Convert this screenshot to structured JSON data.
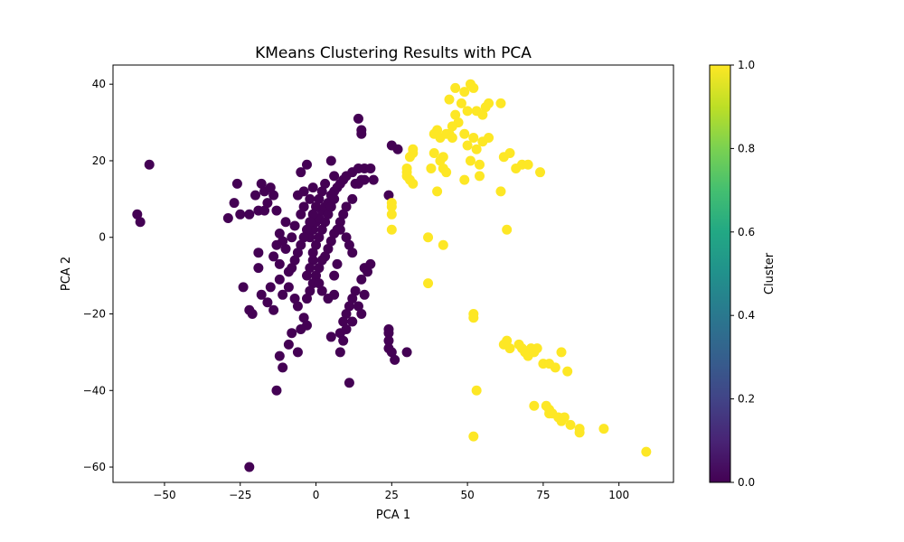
{
  "chart_data": {
    "type": "scatter",
    "title": "KMeans Clustering Results with PCA",
    "xlabel": "PCA 1",
    "ylabel": "PCA 2",
    "xlim": [
      -67,
      118
    ],
    "ylim": [
      -64,
      45
    ],
    "xticks": [
      -50,
      -25,
      0,
      25,
      50,
      75,
      100
    ],
    "xtick_labels": [
      "−50",
      "−25",
      "0",
      "25",
      "50",
      "75",
      "100"
    ],
    "yticks": [
      -60,
      -40,
      -20,
      0,
      20,
      40
    ],
    "ytick_labels": [
      "−60",
      "−40",
      "−20",
      "0",
      "20",
      "40"
    ],
    "grid": false,
    "colorbar": {
      "label": "Cluster",
      "range": [
        0,
        1
      ],
      "ticks": [
        0.0,
        0.2,
        0.4,
        0.6,
        0.8,
        1.0
      ],
      "tick_labels": [
        "0.0",
        "0.2",
        "0.4",
        "0.6",
        "0.8",
        "1.0"
      ],
      "colormap": "viridis"
    },
    "series": [
      {
        "cluster": 0,
        "color": "#440154",
        "points": [
          [
            -55,
            19
          ],
          [
            -59,
            6
          ],
          [
            -58,
            4
          ],
          [
            -26,
            14
          ],
          [
            -27,
            9
          ],
          [
            -29,
            5
          ],
          [
            -25,
            6
          ],
          [
            -22,
            6
          ],
          [
            -20,
            11
          ],
          [
            -18,
            14
          ],
          [
            -17,
            12
          ],
          [
            -15,
            13
          ],
          [
            -19,
            7
          ],
          [
            -17,
            7
          ],
          [
            -16,
            9
          ],
          [
            -14,
            11
          ],
          [
            -13,
            7
          ],
          [
            -19,
            -8
          ],
          [
            -21,
            -20
          ],
          [
            -22,
            -19
          ],
          [
            -24,
            -13
          ],
          [
            -19,
            -4
          ],
          [
            -14,
            -5
          ],
          [
            -12,
            -7
          ],
          [
            -10,
            -3
          ],
          [
            -8,
            0
          ],
          [
            -7,
            3
          ],
          [
            -5,
            6
          ],
          [
            -4,
            8
          ],
          [
            -2,
            10
          ],
          [
            -1,
            13
          ],
          [
            -5,
            17
          ],
          [
            -3,
            19
          ],
          [
            -6,
            11
          ],
          [
            -4,
            12
          ],
          [
            -11,
            -1
          ],
          [
            -9,
            -9
          ],
          [
            -12,
            -11
          ],
          [
            -15,
            -13
          ],
          [
            -18,
            -15
          ],
          [
            -16,
            -17
          ],
          [
            -14,
            -19
          ],
          [
            -11,
            -15
          ],
          [
            -9,
            -13
          ],
          [
            -7,
            -16
          ],
          [
            -6,
            -18
          ],
          [
            -4,
            -21
          ],
          [
            -3,
            -23
          ],
          [
            -5,
            -24
          ],
          [
            -8,
            -25
          ],
          [
            -9,
            -28
          ],
          [
            -12,
            -31
          ],
          [
            -11,
            -34
          ],
          [
            -13,
            -40
          ],
          [
            -22,
            -60
          ],
          [
            -2,
            0
          ],
          [
            -1,
            2
          ],
          [
            0,
            4
          ],
          [
            1,
            5
          ],
          [
            2,
            7
          ],
          [
            3,
            8
          ],
          [
            4,
            9
          ],
          [
            5,
            11
          ],
          [
            6,
            12
          ],
          [
            7,
            13
          ],
          [
            8,
            14
          ],
          [
            9,
            15
          ],
          [
            10,
            16
          ],
          [
            12,
            17
          ],
          [
            14,
            18
          ],
          [
            16,
            18
          ],
          [
            18,
            18
          ],
          [
            13,
            14
          ],
          [
            15,
            15
          ],
          [
            12,
            10
          ],
          [
            10,
            8
          ],
          [
            9,
            6
          ],
          [
            8,
            4
          ],
          [
            7,
            2
          ],
          [
            6,
            1
          ],
          [
            5,
            -1
          ],
          [
            4,
            -3
          ],
          [
            3,
            -5
          ],
          [
            2,
            -6
          ],
          [
            1,
            -8
          ],
          [
            0,
            -10
          ],
          [
            -1,
            -12
          ],
          [
            -2,
            -14
          ],
          [
            -3,
            -16
          ],
          [
            -1,
            -4
          ],
          [
            0,
            -2
          ],
          [
            1,
            0
          ],
          [
            2,
            2
          ],
          [
            3,
            4
          ],
          [
            4,
            6
          ],
          [
            5,
            8
          ],
          [
            6,
            10
          ],
          [
            0,
            8
          ],
          [
            1,
            10
          ],
          [
            -1,
            6
          ],
          [
            -2,
            4
          ],
          [
            -3,
            2
          ],
          [
            -4,
            0
          ],
          [
            -5,
            -2
          ],
          [
            -6,
            -4
          ],
          [
            -7,
            -6
          ],
          [
            -8,
            -8
          ],
          [
            5,
            20
          ],
          [
            6,
            16
          ],
          [
            3,
            14
          ],
          [
            2,
            12
          ],
          [
            8,
            2
          ],
          [
            10,
            0
          ],
          [
            11,
            -2
          ],
          [
            12,
            -4
          ],
          [
            7,
            -7
          ],
          [
            6,
            -10
          ],
          [
            16,
            -8
          ],
          [
            17,
            -9
          ],
          [
            18,
            -7
          ],
          [
            15,
            -11
          ],
          [
            13,
            -14
          ],
          [
            12,
            -16
          ],
          [
            11,
            -18
          ],
          [
            10,
            -20
          ],
          [
            9,
            -22
          ],
          [
            8,
            -25
          ],
          [
            9,
            -27
          ],
          [
            8,
            -30
          ],
          [
            11,
            -38
          ],
          [
            10,
            -24
          ],
          [
            12,
            -22
          ],
          [
            14,
            -18
          ],
          [
            16,
            -15
          ],
          [
            15,
            -20
          ],
          [
            5,
            -26
          ],
          [
            -6,
            -30
          ],
          [
            24,
            -24
          ],
          [
            24,
            -25
          ],
          [
            24,
            -27
          ],
          [
            24,
            -29
          ],
          [
            25,
            -30
          ],
          [
            26,
            -32
          ],
          [
            30,
            -30
          ],
          [
            24,
            11
          ],
          [
            25,
            24
          ],
          [
            27,
            23
          ],
          [
            14,
            31
          ],
          [
            15,
            28
          ],
          [
            15,
            27
          ],
          [
            16,
            15
          ],
          [
            14,
            14
          ],
          [
            19,
            15
          ],
          [
            -1,
            -6
          ],
          [
            -2,
            -8
          ],
          [
            -3,
            -10
          ],
          [
            1,
            -12
          ],
          [
            2,
            -14
          ],
          [
            4,
            -16
          ],
          [
            6,
            -15
          ],
          [
            -10,
            4
          ],
          [
            -12,
            1
          ],
          [
            -13,
            -2
          ]
        ]
      },
      {
        "cluster": 1,
        "color": "#fde725",
        "points": [
          [
            46,
            39
          ],
          [
            51,
            40
          ],
          [
            52,
            39
          ],
          [
            49,
            38
          ],
          [
            44,
            36
          ],
          [
            48,
            35
          ],
          [
            50,
            33
          ],
          [
            53,
            33
          ],
          [
            56,
            34
          ],
          [
            57,
            35
          ],
          [
            61,
            35
          ],
          [
            55,
            32
          ],
          [
            46,
            32
          ],
          [
            47,
            30
          ],
          [
            45,
            29
          ],
          [
            44,
            27
          ],
          [
            40,
            28
          ],
          [
            39,
            27
          ],
          [
            41,
            26
          ],
          [
            43,
            27
          ],
          [
            49,
            27
          ],
          [
            52,
            26
          ],
          [
            55,
            25
          ],
          [
            57,
            26
          ],
          [
            50,
            24
          ],
          [
            53,
            23
          ],
          [
            45,
            26
          ],
          [
            32,
            23
          ],
          [
            32,
            22
          ],
          [
            39,
            22
          ],
          [
            42,
            21
          ],
          [
            41,
            20
          ],
          [
            38,
            18
          ],
          [
            42,
            18
          ],
          [
            43,
            17
          ],
          [
            51,
            20
          ],
          [
            54,
            19
          ],
          [
            54,
            16
          ],
          [
            49,
            15
          ],
          [
            31,
            21
          ],
          [
            30,
            18
          ],
          [
            30,
            17
          ],
          [
            30,
            16
          ],
          [
            31,
            15
          ],
          [
            32,
            14
          ],
          [
            40,
            12
          ],
          [
            61,
            12
          ],
          [
            62,
            21
          ],
          [
            64,
            22
          ],
          [
            66,
            18
          ],
          [
            68,
            19
          ],
          [
            70,
            19
          ],
          [
            74,
            17
          ],
          [
            25,
            9
          ],
          [
            25,
            8
          ],
          [
            25,
            6
          ],
          [
            25,
            2
          ],
          [
            37,
            0
          ],
          [
            42,
            -2
          ],
          [
            37,
            -12
          ],
          [
            63,
            2
          ],
          [
            52,
            -20
          ],
          [
            52,
            -21
          ],
          [
            62,
            -28
          ],
          [
            63,
            -27
          ],
          [
            64,
            -29
          ],
          [
            67,
            -28
          ],
          [
            68,
            -29
          ],
          [
            69,
            -30
          ],
          [
            70,
            -31
          ],
          [
            71,
            -29
          ],
          [
            72,
            -30
          ],
          [
            73,
            -29
          ],
          [
            81,
            -30
          ],
          [
            75,
            -33
          ],
          [
            77,
            -33
          ],
          [
            79,
            -34
          ],
          [
            83,
            -35
          ],
          [
            72,
            -44
          ],
          [
            76,
            -44
          ],
          [
            77,
            -45
          ],
          [
            77,
            -46
          ],
          [
            78,
            -46
          ],
          [
            80,
            -47
          ],
          [
            82,
            -47
          ],
          [
            81,
            -48
          ],
          [
            84,
            -49
          ],
          [
            87,
            -50
          ],
          [
            87,
            -51
          ],
          [
            95,
            -50
          ],
          [
            53,
            -40
          ],
          [
            52,
            -52
          ],
          [
            109,
            -56
          ]
        ]
      }
    ]
  }
}
